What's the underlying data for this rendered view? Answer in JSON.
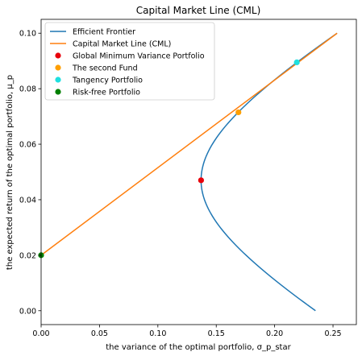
{
  "chart_data": {
    "type": "line",
    "title": "Capital Market Line (CML)",
    "xlabel": "the variance of the optimal portfolio, σ_p_star",
    "ylabel": "the expected return of the optimal portfolio, μ_p",
    "xlim": [
      0,
      0.27
    ],
    "ylim": [
      -0.005,
      0.105
    ],
    "grid": false,
    "legend_position": "top-left",
    "x_ticks": [
      "0.00",
      "0.05",
      "0.10",
      "0.15",
      "0.20",
      "0.25"
    ],
    "y_ticks": [
      "0.00",
      "0.02",
      "0.04",
      "0.06",
      "0.08",
      "0.10"
    ],
    "frontier": {
      "name": "Efficient Frontier",
      "color": "#1f77b4",
      "min_variance_point": [
        0.137,
        0.047
      ],
      "mu_range": [
        0.0,
        0.1
      ],
      "x_at_mu_0": 0.235,
      "x_at_mu_0_1": 0.2535
    },
    "series": [
      {
        "name": "Capital Market Line (CML)",
        "color": "#ff7f0e",
        "x": [
          0.0,
          0.2535
        ],
        "y": [
          0.02,
          0.1
        ]
      }
    ],
    "points": [
      {
        "name": "Global Minimum Variance Portfolio",
        "color": "#e8000b",
        "x": 0.137,
        "y": 0.047
      },
      {
        "name": "The second Fund",
        "color": "#ff9f00",
        "x": 0.169,
        "y": 0.0715
      },
      {
        "name": "Tangency Portfolio",
        "color": "#1fe0e0",
        "x": 0.219,
        "y": 0.0895
      },
      {
        "name": "Risk-free Portfolio",
        "color": "#008000",
        "x": 0.0,
        "y": 0.02
      }
    ]
  }
}
